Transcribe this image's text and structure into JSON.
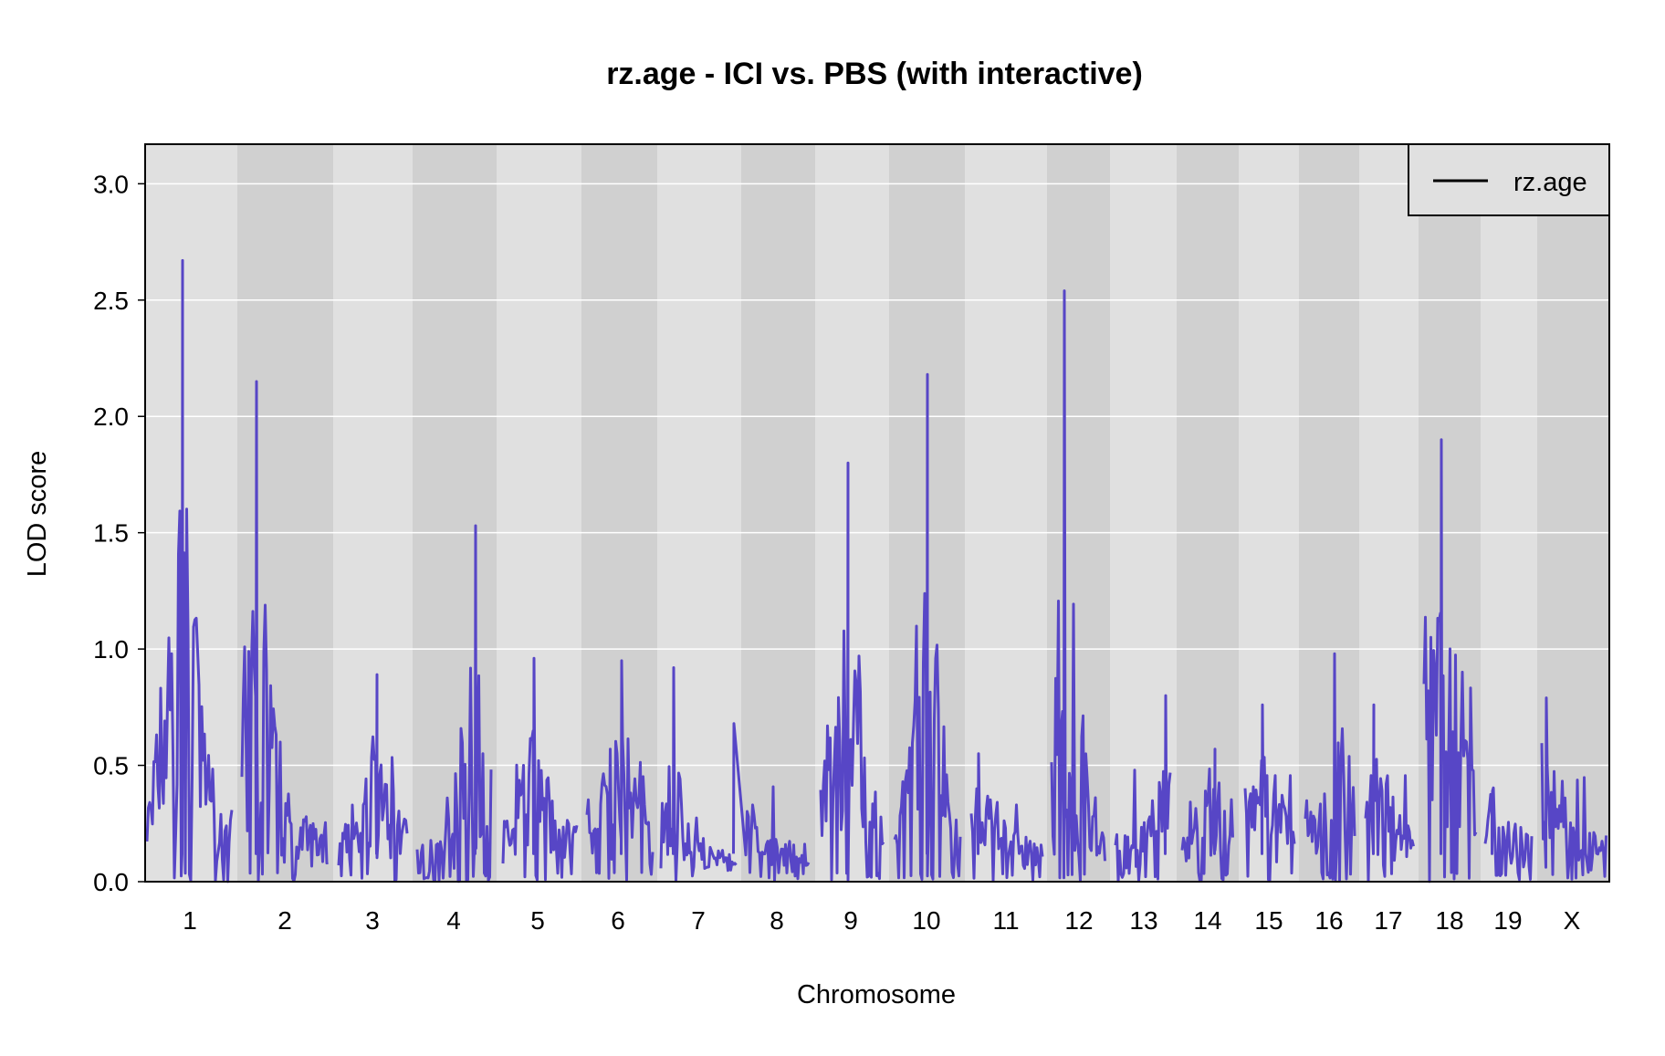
{
  "chart_data": {
    "type": "line",
    "title": "rz.age - ICI vs. PBS (with interactive)",
    "xlabel": "Chromosome",
    "ylabel": "LOD score",
    "ylim": [
      0,
      3.17
    ],
    "yticks": [
      0.0,
      0.5,
      1.0,
      1.5,
      2.0,
      2.5,
      3.0
    ],
    "ytick_labels": [
      "0.0",
      "0.5",
      "1.0",
      "1.5",
      "2.0",
      "2.5",
      "3.0"
    ],
    "grid": true,
    "legend": {
      "position": "top-right",
      "entries": [
        "rz.age"
      ]
    },
    "chromosomes": [
      "1",
      "2",
      "3",
      "4",
      "5",
      "6",
      "7",
      "8",
      "9",
      "10",
      "11",
      "12",
      "13",
      "14",
      "15",
      "16",
      "17",
      "18",
      "19",
      "X"
    ],
    "chromosome_band_colors": [
      "#e0e0e0",
      "#d0d0d0"
    ],
    "series": [
      {
        "name": "rz.age",
        "color": "#5746c6",
        "peaks": [
          {
            "chromosome": "1",
            "max_lod": 2.67
          },
          {
            "chromosome": "2",
            "max_lod": 2.15
          },
          {
            "chromosome": "3",
            "max_lod": 0.89
          },
          {
            "chromosome": "4",
            "max_lod": 1.53
          },
          {
            "chromosome": "5",
            "max_lod": 0.96
          },
          {
            "chromosome": "6",
            "max_lod": 0.95
          },
          {
            "chromosome": "7",
            "max_lod": 0.92
          },
          {
            "chromosome": "8",
            "max_lod": 0.68
          },
          {
            "chromosome": "9",
            "max_lod": 1.8
          },
          {
            "chromosome": "10",
            "max_lod": 2.18
          },
          {
            "chromosome": "11",
            "max_lod": 0.55
          },
          {
            "chromosome": "12",
            "max_lod": 2.54
          },
          {
            "chromosome": "13",
            "max_lod": 0.8
          },
          {
            "chromosome": "14",
            "max_lod": 0.57
          },
          {
            "chromosome": "15",
            "max_lod": 0.76
          },
          {
            "chromosome": "16",
            "max_lod": 0.98
          },
          {
            "chromosome": "17",
            "max_lod": 0.76
          },
          {
            "chromosome": "18",
            "max_lod": 1.9
          },
          {
            "chromosome": "19",
            "max_lod": 0.39
          },
          {
            "chromosome": "X",
            "max_lod": 0.79
          }
        ]
      }
    ]
  }
}
